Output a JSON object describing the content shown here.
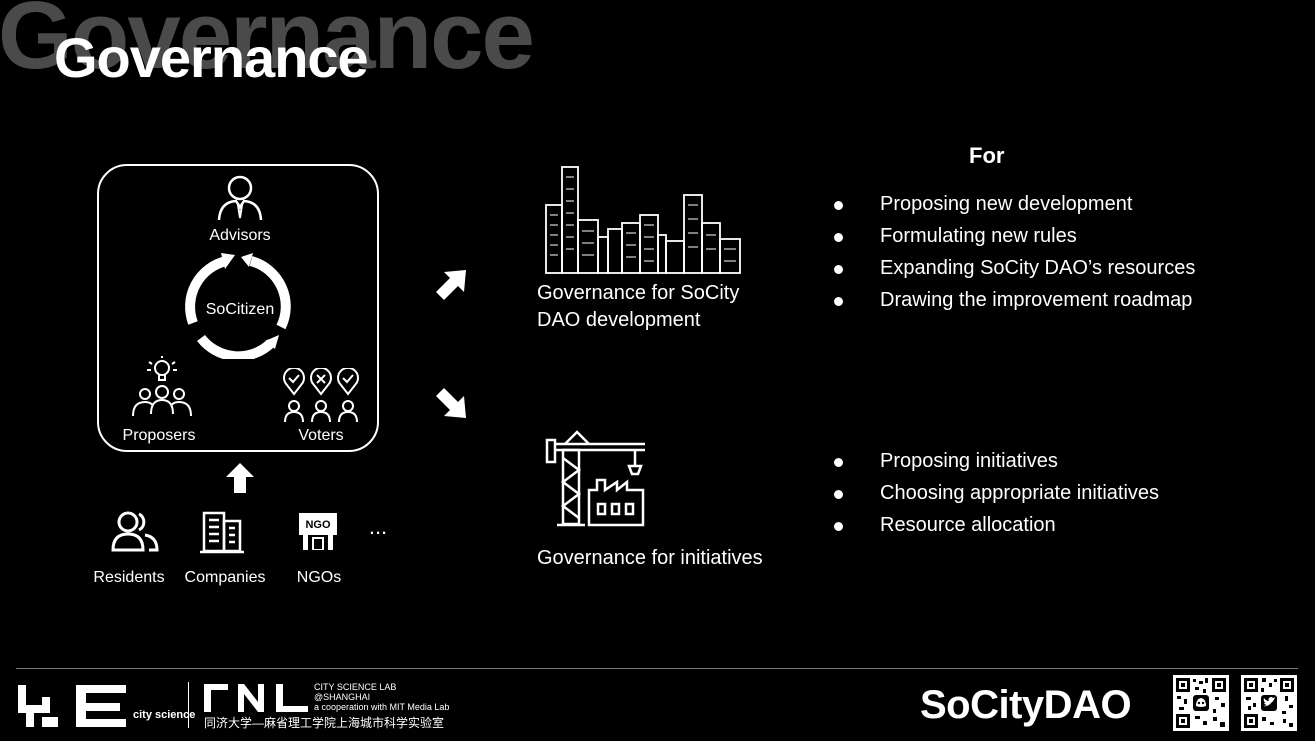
{
  "title": {
    "background": "Governance",
    "main": "Governance"
  },
  "diagram": {
    "center": "SoCitizen",
    "roles": {
      "advisors": "Advisors",
      "proposers": "Proposers",
      "voters": "Voters"
    },
    "stakeholders": {
      "residents": "Residents",
      "companies": "Companies",
      "ngos": "NGOs",
      "more": "..."
    },
    "ngo_sign": "NGO"
  },
  "governance_dev": {
    "title": "Governance for SoCity DAO development",
    "items": [
      "Proposing new development",
      "Formulating new rules",
      "Expanding SoCity DAO’s resources",
      "Drawing the improvement roadmap"
    ]
  },
  "governance_init": {
    "title": "Governance for initiatives",
    "items": [
      "Proposing initiatives",
      "Choosing appropriate initiatives",
      "Resource allocation"
    ]
  },
  "for_heading": "For",
  "footer": {
    "brand": "SoCityDAO",
    "city_science": "city science",
    "lab_line1": "CITY SCIENCE LAB",
    "lab_line2": "@SHANGHAI",
    "lab_line3": "a cooperation with MIT Media Lab",
    "lab_cn": "同济大学—麻省理工学院上海城市科学实验室"
  },
  "colors": {
    "background": "#000000",
    "foreground": "#ffffff",
    "ghost_title": "#4a4a4a"
  }
}
